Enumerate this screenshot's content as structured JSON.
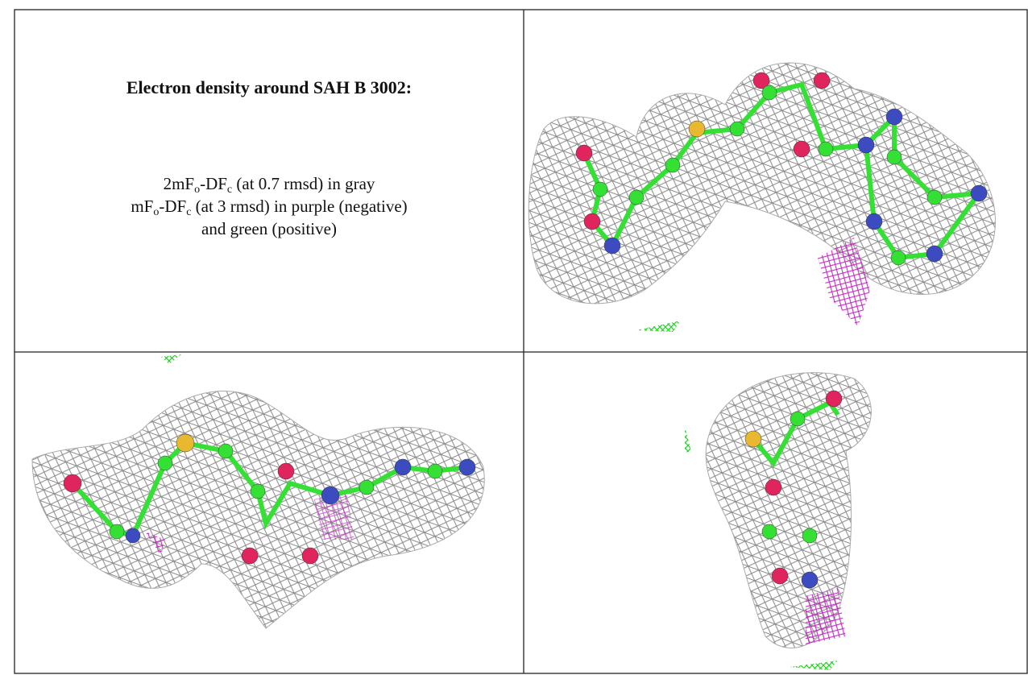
{
  "title": "Electron density around SAH B 3002:",
  "legend": [
    {
      "parts": [
        "2mF",
        "o",
        "-DF",
        "c",
        " (at 0.7 rmsd) in gray"
      ]
    },
    {
      "parts": [
        "mF",
        "o",
        "-DF",
        "c",
        " (at 3 rmsd) in purple (negative)"
      ]
    },
    {
      "parts": [
        "and green (positive)"
      ]
    }
  ]
}
